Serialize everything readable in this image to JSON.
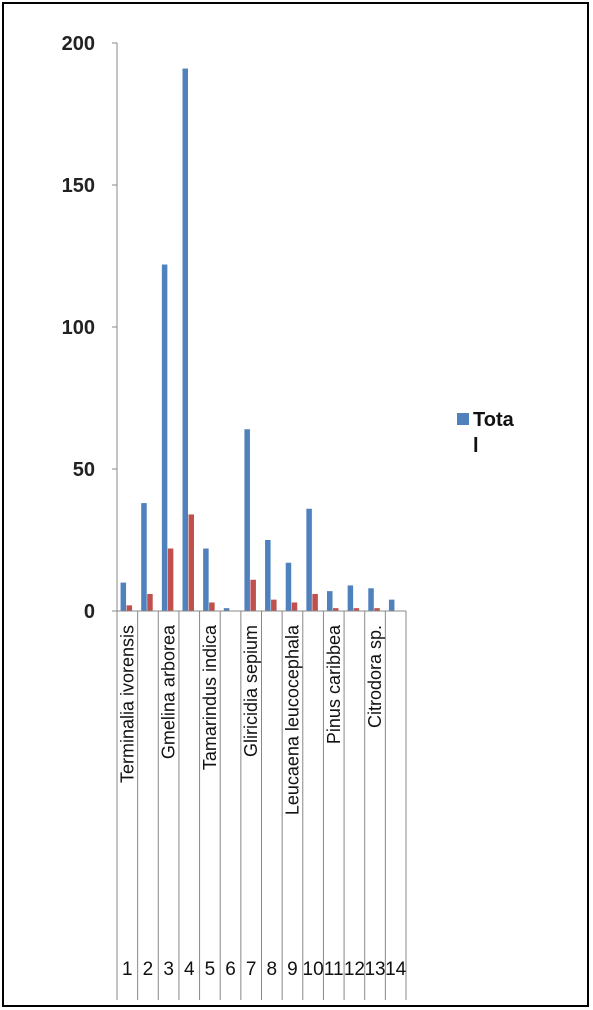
{
  "chart_data": {
    "type": "bar",
    "categories": [
      "1",
      "2",
      "3",
      "4",
      "5",
      "6",
      "7",
      "8",
      "9",
      "10",
      "11",
      "12",
      "13",
      "14"
    ],
    "category_names": [
      "Terminalia ivorensis",
      "",
      "Gmelina arborea",
      "",
      "Tamarindus indica",
      "",
      "Gliricidia sepium",
      "",
      "Leucaena leucocephala",
      "",
      "Pinus caribbea",
      "",
      "Citrodora sp.",
      ""
    ],
    "series": [
      {
        "name": "Total",
        "color": "#4f81bd",
        "values": [
          10,
          38,
          122,
          191,
          22,
          1,
          64,
          25,
          17,
          36,
          7,
          9,
          8,
          4
        ]
      },
      {
        "color": "#c0504d",
        "values": [
          2,
          6,
          22,
          34,
          3,
          0,
          11,
          4,
          3,
          6,
          1,
          1,
          1,
          0
        ]
      }
    ],
    "legend": {
      "line1": "Tota",
      "line2": "l",
      "placement": "right"
    },
    "ylim": [
      0,
      200
    ],
    "yticks": [
      0,
      50,
      100,
      150,
      200
    ],
    "grid": false,
    "title": "",
    "xlabel": "",
    "ylabel": ""
  }
}
